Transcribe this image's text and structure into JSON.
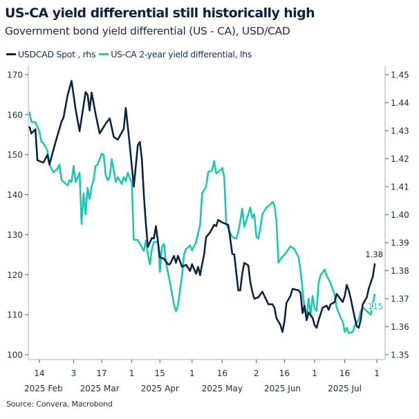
{
  "title": "US-CA yield differential still historically high",
  "subtitle": "Government bond yield differential (US - CA), USD/CAD",
  "source": "Source: Convera, Macrobond",
  "colors": {
    "usdcad": "#0d2240",
    "diff": "#19c8b3",
    "axis": "#c8c8c8"
  },
  "chart_data": {
    "type": "line",
    "title": "US-CA yield differential still historically high",
    "x_unit": "days since 2025-02-14",
    "legend": [
      {
        "label": "USDCAD Spot , rhs",
        "series": "usdcad"
      },
      {
        "label": "US-CA 2-year yield differential, lhs",
        "series": "diff"
      }
    ],
    "legend_placement": "top-left",
    "left_axis": {
      "ylim": [
        100,
        170
      ],
      "ticks": [
        "100",
        "110",
        "120",
        "130",
        "140",
        "150",
        "160",
        "170"
      ]
    },
    "right_axis": {
      "ylim": [
        1.35,
        1.45
      ],
      "ticks": [
        "1.35",
        "1.36",
        "1.37",
        "1.38",
        "1.39",
        "1.40",
        "1.41",
        "1.42",
        "1.43",
        "1.44",
        "1.45"
      ]
    },
    "x_ticks": [
      {
        "day": 0,
        "label": "14"
      },
      {
        "day": 17,
        "label": "3"
      },
      {
        "day": 31,
        "label": "17"
      },
      {
        "day": 46,
        "label": "1"
      },
      {
        "day": 60,
        "label": "15"
      },
      {
        "day": 76,
        "label": "1"
      },
      {
        "day": 91,
        "label": "16"
      },
      {
        "day": 108,
        "label": "2"
      },
      {
        "day": 122,
        "label": "16"
      },
      {
        "day": 137,
        "label": "1"
      },
      {
        "day": 152,
        "label": "16"
      },
      {
        "day": 168,
        "label": "1"
      }
    ],
    "x_groups": [
      {
        "center": 2,
        "label": "2025 Feb"
      },
      {
        "center": 30,
        "label": "2025 Mar"
      },
      {
        "center": 60,
        "label": "2025 Apr"
      },
      {
        "center": 91,
        "label": "2025 May"
      },
      {
        "center": 121,
        "label": "2025 Jun"
      },
      {
        "center": 152,
        "label": "2025 Jul"
      }
    ],
    "end_labels": {
      "usdcad": "1.38",
      "diff": "115"
    },
    "series": [
      {
        "name": "USDCAD Spot , rhs",
        "key": "usdcad",
        "axis": "right",
        "x": [
          -5,
          -4,
          -2,
          -1,
          2,
          4,
          5,
          8,
          11,
          12,
          14,
          16,
          18,
          20,
          23,
          24,
          25,
          26,
          28,
          30,
          33,
          35,
          37,
          39,
          42,
          43,
          44,
          45,
          47,
          49,
          50,
          51,
          52,
          53,
          54,
          56,
          57,
          58,
          59,
          60,
          62,
          64,
          65,
          67,
          68,
          69,
          71,
          73,
          75,
          76,
          78,
          79,
          80,
          81,
          82,
          83,
          85,
          87,
          88,
          89,
          90,
          91,
          94,
          95,
          96,
          97,
          99,
          100,
          101,
          102,
          104,
          105,
          106,
          107,
          109,
          111,
          112,
          114,
          116,
          117,
          118,
          120,
          121,
          122,
          123,
          125,
          126,
          129,
          130,
          131,
          132,
          133,
          134,
          136,
          137,
          138,
          139,
          141,
          143,
          144,
          145,
          147,
          148,
          150,
          151,
          152,
          153,
          154,
          155,
          157,
          158,
          159,
          160,
          161,
          163,
          164,
          166,
          167
        ],
        "y": [
          1.4315,
          1.429,
          1.4305,
          1.4194,
          1.4186,
          1.4214,
          1.4179,
          1.4258,
          1.4332,
          1.4347,
          1.4426,
          1.4478,
          1.4377,
          1.4298,
          1.4438,
          1.4428,
          1.4372,
          1.4436,
          1.4359,
          1.429,
          1.4325,
          1.4344,
          1.4278,
          1.4268,
          1.4307,
          1.4381,
          1.4315,
          1.4248,
          1.41,
          1.4248,
          1.426,
          1.4199,
          1.4068,
          1.3967,
          1.3885,
          1.3917,
          1.3915,
          1.3959,
          1.3905,
          1.3848,
          1.3843,
          1.3823,
          1.3823,
          1.3853,
          1.3828,
          1.3853,
          1.3814,
          1.3821,
          1.3799,
          1.3823,
          1.3789,
          1.3814,
          1.3784,
          1.3823,
          1.3858,
          1.392,
          1.3937,
          1.3964,
          1.3959,
          1.3981,
          1.3977,
          1.3972,
          1.3964,
          1.3915,
          1.386,
          1.3858,
          1.373,
          1.373,
          1.3791,
          1.3828,
          1.3819,
          1.3759,
          1.3725,
          1.37,
          1.3705,
          1.3725,
          1.371,
          1.368,
          1.368,
          1.3668,
          1.3631,
          1.3606,
          1.3581,
          1.3619,
          1.3685,
          1.371,
          1.3735,
          1.373,
          1.3722,
          1.3648,
          1.3675,
          1.3623,
          1.3651,
          1.3631,
          1.3606,
          1.3596,
          1.3623,
          1.3668,
          1.3675,
          1.366,
          1.368,
          1.3688,
          1.3717,
          1.3698,
          1.3688,
          1.371,
          1.3749,
          1.373,
          1.37,
          1.3631,
          1.3601,
          1.3596,
          1.3626,
          1.368,
          1.3705,
          1.3737,
          1.3779,
          1.3826
        ]
      },
      {
        "name": "US-CA 2-year yield differential, lhs",
        "key": "diff",
        "axis": "left",
        "x": [
          -5,
          -4,
          -2,
          0,
          1,
          2,
          4,
          5,
          7,
          9,
          10,
          11,
          14,
          15,
          16,
          17,
          18,
          20,
          21,
          22,
          23,
          24,
          25,
          26,
          27,
          28,
          29,
          31,
          32,
          33,
          34,
          35,
          36,
          38,
          39,
          41,
          42,
          43,
          44,
          46,
          47,
          49,
          51,
          52,
          53,
          54,
          55,
          56,
          57,
          59,
          60,
          61,
          62,
          63,
          65,
          67,
          68,
          69,
          71,
          72,
          73,
          75,
          76,
          78,
          80,
          81,
          83,
          84,
          86,
          87,
          88,
          90,
          91,
          92,
          93,
          94,
          96,
          98,
          99,
          100,
          101,
          102,
          104,
          105,
          106,
          107,
          108,
          109,
          110,
          111,
          113,
          115,
          116,
          117,
          118,
          119,
          120,
          121,
          123,
          124,
          125,
          127,
          129,
          130,
          131,
          132,
          133,
          134,
          135,
          136,
          137,
          138,
          139,
          140,
          142,
          143,
          144,
          145,
          147,
          148,
          150,
          151,
          152,
          153,
          154,
          156,
          157,
          159,
          160,
          161,
          163,
          165,
          166,
          167
        ],
        "y": [
          160.7,
          158.2,
          158.1,
          155.8,
          153.2,
          152.9,
          151.0,
          147.5,
          145.6,
          146.5,
          147.5,
          143.7,
          142.3,
          143.6,
          143.2,
          147.2,
          143.2,
          145.5,
          132.7,
          140.3,
          135.1,
          141.7,
          138.9,
          142.0,
          143.7,
          147.2,
          147.5,
          150.3,
          149.9,
          144.9,
          143.6,
          144.6,
          148.9,
          143.2,
          144.4,
          142.7,
          144.4,
          143.4,
          145.5,
          143.0,
          128.7,
          128.7,
          126.8,
          125.9,
          128.5,
          125.1,
          122.6,
          126.4,
          128.2,
          128.2,
          120.7,
          127.0,
          127.7,
          123.0,
          118.1,
          112.6,
          110.9,
          112.3,
          119.9,
          125.1,
          126.4,
          127.3,
          126.1,
          128.2,
          132.5,
          140.3,
          142.0,
          145.6,
          146.1,
          148.4,
          145.3,
          146.1,
          146.7,
          144.4,
          132.5,
          131.6,
          129.4,
          129.0,
          130.8,
          133.4,
          136.5,
          132.0,
          135.1,
          136.8,
          134.2,
          135.1,
          129.6,
          129.0,
          131.6,
          135.1,
          136.8,
          137.5,
          138.2,
          137.5,
          133.4,
          123.0,
          123.9,
          124.4,
          125.6,
          126.4,
          127.1,
          126.4,
          124.4,
          121.3,
          116.1,
          111.4,
          109.2,
          114.0,
          110.0,
          114.7,
          111.6,
          110.9,
          118.1,
          119.9,
          121.3,
          119.9,
          118.8,
          117.8,
          115.0,
          111.8,
          109.2,
          108.3,
          105.7,
          106.7,
          105.4,
          105.7,
          107.4,
          108.8,
          110.9,
          111.8,
          110.9,
          110.0,
          112.6,
          115.2
        ]
      }
    ]
  }
}
